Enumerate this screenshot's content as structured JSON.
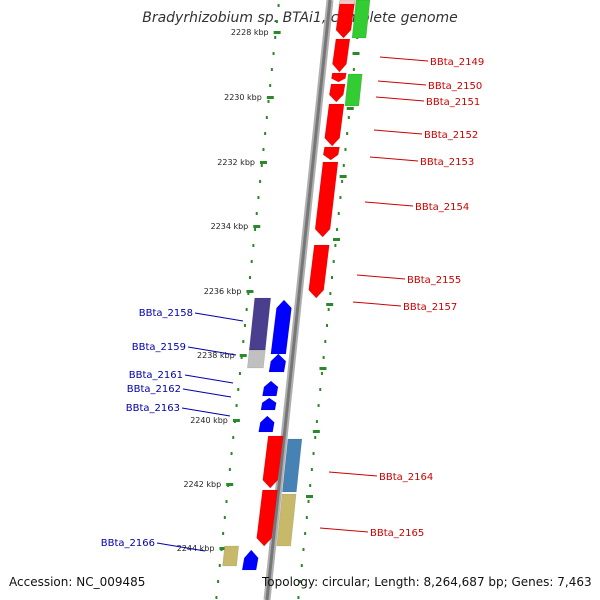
{
  "title": "Bradyrhizobium sp. BTAi1, complete genome",
  "footer": {
    "accession": "Accession: NC_009485",
    "topology": "Topology: circular; Length: 8,264,687 bp; Genes: 7,463"
  },
  "scale_labels": [
    "2228 kbp",
    "2230 kbp",
    "2232 kbp",
    "2234 kbp",
    "2236 kbp",
    "2238 kbp",
    "2240 kbp",
    "2242 kbp",
    "2244 kbp"
  ],
  "right_genes": [
    "BBta_2149",
    "BBta_2150",
    "BBta_2151",
    "BBta_2152",
    "BBta_2153",
    "BBta_2154",
    "BBta_2155",
    "BBta_2157",
    "BBta_2164",
    "BBta_2165"
  ],
  "left_genes": [
    "BBta_2158",
    "BBta_2159",
    "BBta_2161",
    "BBta_2162",
    "BBta_2163",
    "BBta_2166"
  ],
  "colors": {
    "right_label": "#cc0000",
    "left_label": "#0000aa",
    "red_gene": "#ff0000",
    "green_gene": "#33cc33",
    "blue_gene": "#0000ff",
    "navy_gene": "#4a3f8f",
    "steel_gene": "#4682b4",
    "khaki_gene": "#c8b96a",
    "ticks": "#2a8a2a",
    "backbone": "#888888"
  }
}
